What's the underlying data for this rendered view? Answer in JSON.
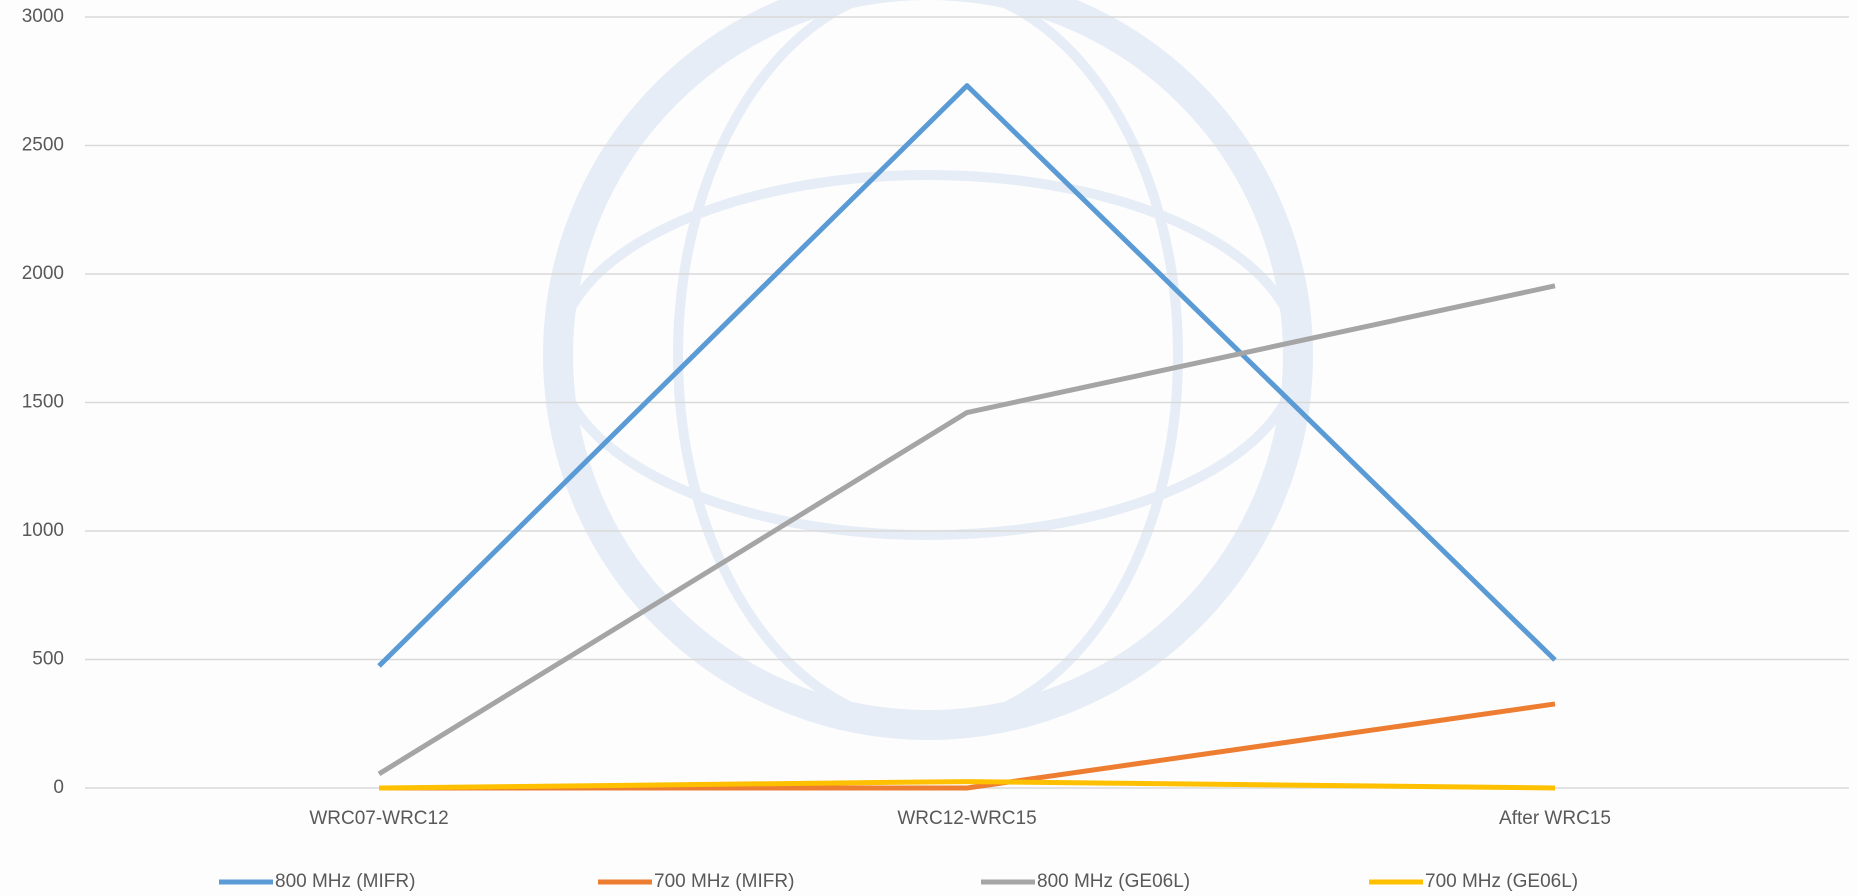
{
  "chart_data": {
    "type": "line",
    "categories": [
      "WRC07-WRC12",
      "WRC12-WRC15",
      "After WRC15"
    ],
    "series": [
      {
        "name": "800 MHz (MIFR)",
        "color": "#5b9bd5",
        "values": [
          475,
          2733,
          498
        ]
      },
      {
        "name": "700 MHz (MIFR)",
        "color": "#ed7d31",
        "values": [
          0,
          0,
          327
        ]
      },
      {
        "name": "800 MHz (GE06L)",
        "color": "#a5a5a5",
        "values": [
          55,
          1461,
          1954
        ]
      },
      {
        "name": "700 MHz (GE06L)",
        "color": "#ffc000",
        "values": [
          0,
          25,
          0
        ]
      }
    ],
    "ylim": [
      0,
      3000
    ],
    "yticks": [
      0,
      500,
      1000,
      1500,
      2000,
      2500,
      3000
    ],
    "grid": true,
    "legend": "bottom"
  }
}
